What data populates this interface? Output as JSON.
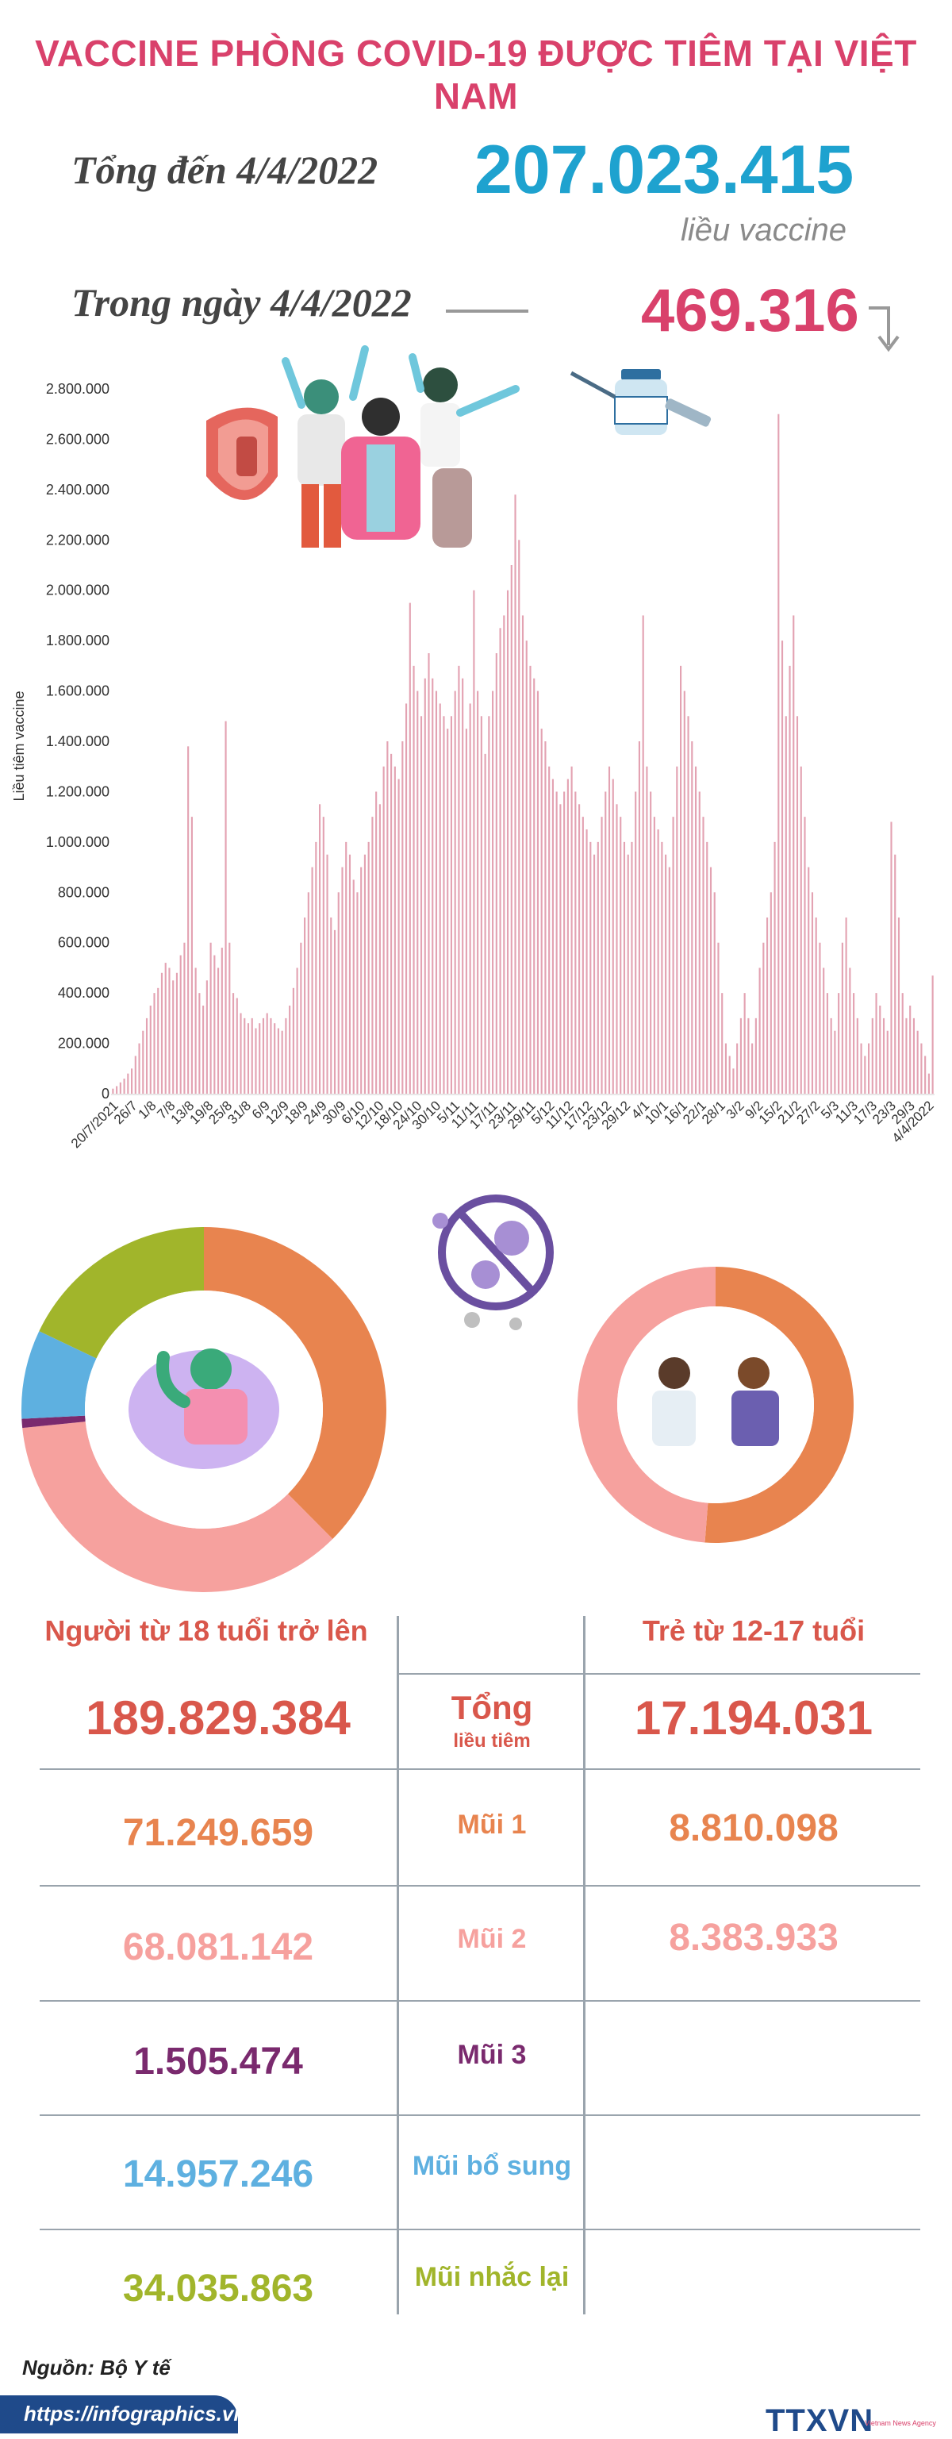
{
  "title": "VACCINE PHÒNG COVID-19 ĐƯỢC TIÊM TẠI VIỆT NAM",
  "summary": {
    "total_label": "Tổng đến 4/4/2022",
    "total_value": "207.023.415",
    "total_unit": "liều vaccine",
    "day_label": "Trong ngày 4/4/2022",
    "day_value": "469.316"
  },
  "colors": {
    "pink": "#d9416b",
    "blue": "#1ea2cf",
    "bar": "#e3a2b2",
    "dose1": "#e8844f",
    "dose2": "#f6a19e",
    "dose3": "#7a2a6e",
    "supp": "#5eb0e0",
    "booster": "#a1b52b"
  },
  "chart_data": [
    {
      "type": "bar",
      "ylabel": "Liều tiêm vaccine",
      "ylim": [
        0,
        2800000
      ],
      "yticks": [
        "0",
        "200.000",
        "400.000",
        "600.000",
        "800.000",
        "1.000.000",
        "1.200.000",
        "1.400.000",
        "1.600.000",
        "1.800.000",
        "2.000.000",
        "2.200.000",
        "2.400.000",
        "2.600.000",
        "2.800.000"
      ],
      "xticks": [
        "20/7/2021",
        "26/7",
        "1/8",
        "7/8",
        "13/8",
        "19/8",
        "25/8",
        "31/8",
        "6/9",
        "12/9",
        "18/9",
        "24/9",
        "30/9",
        "6/10",
        "12/10",
        "18/10",
        "24/10",
        "30/10",
        "5/11",
        "11/11",
        "17/11",
        "23/11",
        "29/11",
        "5/12",
        "11/12",
        "17/12",
        "23/12",
        "29/12",
        "4/1",
        "10/1",
        "16/1",
        "22/1",
        "28/1",
        "3/2",
        "9/2",
        "15/2",
        "21/2",
        "27/2",
        "5/3",
        "11/3",
        "17/3",
        "23/3",
        "29/3",
        "4/4/2022"
      ],
      "series": [
        {
          "values": [
            20000,
            30000,
            45000,
            60000,
            80000,
            100000,
            150000,
            200000,
            250000,
            300000,
            350000,
            400000,
            420000,
            480000,
            520000,
            500000,
            450000,
            480000,
            550000,
            600000,
            1380000,
            1100000,
            500000,
            400000,
            350000,
            450000,
            600000,
            550000,
            500000,
            580000,
            1480000,
            600000,
            400000,
            380000,
            320000,
            300000,
            280000,
            300000,
            260000,
            280000,
            300000,
            320000,
            300000,
            280000,
            260000,
            250000,
            300000,
            350000,
            420000,
            500000,
            600000,
            700000,
            800000,
            900000,
            1000000,
            1150000,
            1100000,
            950000,
            700000,
            650000,
            800000,
            900000,
            1000000,
            950000,
            850000,
            800000,
            900000,
            950000,
            1000000,
            1100000,
            1200000,
            1150000,
            1300000,
            1400000,
            1350000,
            1300000,
            1250000,
            1400000,
            1550000,
            1950000,
            1700000,
            1600000,
            1500000,
            1650000,
            1750000,
            1650000,
            1600000,
            1550000,
            1500000,
            1450000,
            1500000,
            1600000,
            1700000,
            1650000,
            1450000,
            1550000,
            2000000,
            1600000,
            1500000,
            1350000,
            1500000,
            1600000,
            1750000,
            1850000,
            1900000,
            2000000,
            2100000,
            2380000,
            2200000,
            1900000,
            1800000,
            1700000,
            1650000,
            1600000,
            1450000,
            1400000,
            1300000,
            1250000,
            1200000,
            1150000,
            1200000,
            1250000,
            1300000,
            1200000,
            1150000,
            1100000,
            1050000,
            1000000,
            950000,
            1000000,
            1100000,
            1200000,
            1300000,
            1250000,
            1150000,
            1100000,
            1000000,
            950000,
            1000000,
            1200000,
            1400000,
            1900000,
            1300000,
            1200000,
            1100000,
            1050000,
            1000000,
            950000,
            900000,
            1100000,
            1300000,
            1700000,
            1600000,
            1500000,
            1400000,
            1300000,
            1200000,
            1100000,
            1000000,
            900000,
            800000,
            600000,
            400000,
            200000,
            150000,
            100000,
            200000,
            300000,
            400000,
            300000,
            200000,
            300000,
            500000,
            600000,
            700000,
            800000,
            1000000,
            2700000,
            1800000,
            1500000,
            1700000,
            1900000,
            1500000,
            1300000,
            1100000,
            900000,
            800000,
            700000,
            600000,
            500000,
            400000,
            300000,
            250000,
            400000,
            600000,
            700000,
            500000,
            400000,
            300000,
            200000,
            150000,
            200000,
            300000,
            400000,
            350000,
            300000,
            250000,
            1080000,
            950000,
            700000,
            400000,
            300000,
            350000,
            300000,
            250000,
            200000,
            150000,
            80000,
            469316
          ]
        }
      ]
    },
    {
      "type": "pie",
      "categories": [
        "Mũi 1",
        "Mũi 2",
        "Mũi 3",
        "Mũi bổ sung",
        "Mũi nhắc lại"
      ],
      "values": [
        71249659,
        68081142,
        1505474,
        14957246,
        34035863
      ]
    },
    {
      "type": "pie",
      "categories": [
        "Mũi 1",
        "Mũi 2"
      ],
      "values": [
        8810098,
        8383933
      ]
    }
  ],
  "table": {
    "col_adult": "Người từ 18 tuổi trở lên",
    "col_child": "Trẻ từ 12-17 tuổi",
    "rows": [
      {
        "label": "Tổng",
        "sublabel": "liều tiêm",
        "adult": "189.829.384",
        "child": "17.194.031"
      },
      {
        "label": "Mũi 1",
        "adult": "71.249.659",
        "child": "8.810.098"
      },
      {
        "label": "Mũi 2",
        "adult": "68.081.142",
        "child": "8.383.933"
      },
      {
        "label": "Mũi 3",
        "adult": "1.505.474",
        "child": ""
      },
      {
        "label": "Mũi bổ sung",
        "adult": "14.957.246",
        "child": ""
      },
      {
        "label": "Mũi nhắc lại",
        "adult": "34.035.863",
        "child": ""
      }
    ]
  },
  "source": "Nguồn: Bộ Y tế",
  "footer": {
    "url": "https://infographics.vn",
    "logo": "TTXVN",
    "logo_sub": "Vietnam News Agency"
  }
}
